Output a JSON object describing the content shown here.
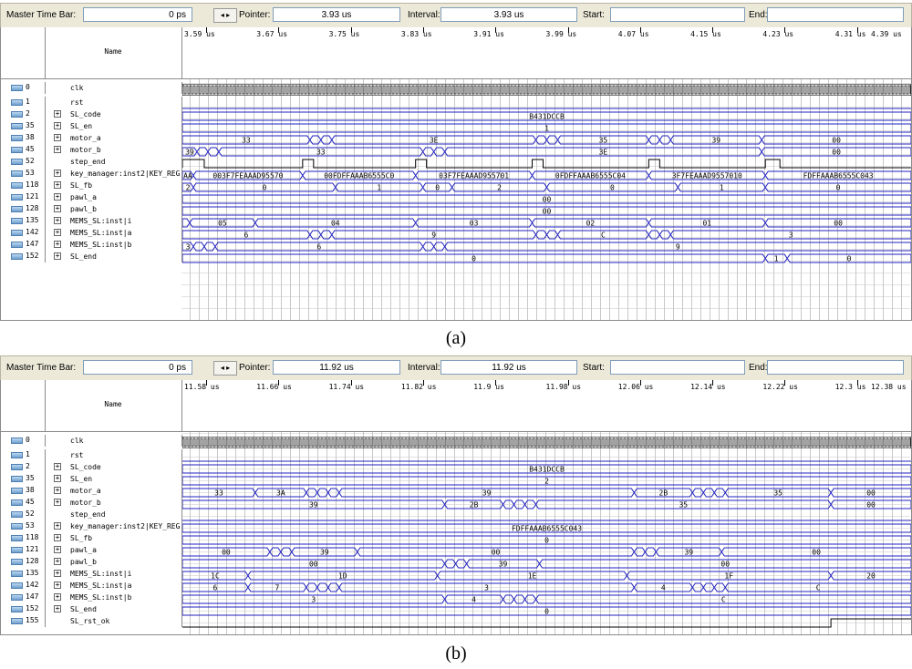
{
  "colors": {
    "wave": "#2020c0",
    "clk": "#1a1a1a",
    "grid": "#c8c8c8"
  },
  "toolbar_labels": {
    "master_time_bar": "Master Time Bar:",
    "pointer": "Pointer:",
    "interval": "Interval:",
    "start": "Start:",
    "end": "End:"
  },
  "panel_a": {
    "caption": "(a)",
    "master_time": "0 ps",
    "pointer": "3.93 us",
    "interval": "3.93 us",
    "start": "",
    "end": "",
    "name_header": "Name",
    "ticks": [
      "3.59 us",
      "3.67 us",
      "3.75 us",
      "3.83 us",
      "3.91 us",
      "3.99 us",
      "4.07 us",
      "4.15 us",
      "4.23 us",
      "4.31 us",
      "4.39 us"
    ],
    "signals": [
      {
        "id": "0",
        "name": "clk",
        "bus": false,
        "kind": "clk"
      },
      {
        "id": "1",
        "name": "rst",
        "bus": false,
        "kind": "low"
      },
      {
        "id": "2",
        "name": "SL_code",
        "bus": true,
        "kind": "bus",
        "segs": [
          {
            "v": "B431DCCB",
            "s": 0,
            "e": 1
          }
        ]
      },
      {
        "id": "35",
        "name": "SL_en",
        "bus": true,
        "kind": "bus",
        "segs": [
          {
            "v": "1",
            "s": 0,
            "e": 1
          }
        ]
      },
      {
        "id": "38",
        "name": "motor_a",
        "bus": true,
        "kind": "bus",
        "segs": [
          {
            "v": "33",
            "s": 0,
            "e": 0.175
          },
          {
            "v": "",
            "s": 0.175,
            "e": 0.19
          },
          {
            "v": "",
            "s": 0.19,
            "e": 0.205
          },
          {
            "v": "3E",
            "s": 0.205,
            "e": 0.485
          },
          {
            "v": "",
            "s": 0.485,
            "e": 0.5
          },
          {
            "v": "",
            "s": 0.5,
            "e": 0.515
          },
          {
            "v": "35",
            "s": 0.515,
            "e": 0.64
          },
          {
            "v": "",
            "s": 0.64,
            "e": 0.655
          },
          {
            "v": "",
            "s": 0.655,
            "e": 0.67
          },
          {
            "v": "39",
            "s": 0.67,
            "e": 0.795
          },
          {
            "v": "00",
            "s": 0.795,
            "e": 1
          }
        ]
      },
      {
        "id": "45",
        "name": "motor_b",
        "bus": true,
        "kind": "bus",
        "segs": [
          {
            "v": "39",
            "s": 0,
            "e": 0.02
          },
          {
            "v": "",
            "s": 0.02,
            "e": 0.035
          },
          {
            "v": "",
            "s": 0.035,
            "e": 0.05
          },
          {
            "v": "33",
            "s": 0.05,
            "e": 0.33
          },
          {
            "v": "",
            "s": 0.33,
            "e": 0.345
          },
          {
            "v": "",
            "s": 0.345,
            "e": 0.36
          },
          {
            "v": "3E",
            "s": 0.36,
            "e": 0.795
          },
          {
            "v": "00",
            "s": 0.795,
            "e": 1
          }
        ]
      },
      {
        "id": "52",
        "name": "step_end",
        "bus": false,
        "kind": "pulses",
        "pulses": [
          [
            0.0,
            0.03
          ],
          [
            0.165,
            0.18
          ],
          [
            0.32,
            0.335
          ],
          [
            0.48,
            0.495
          ],
          [
            0.64,
            0.655
          ],
          [
            0.8,
            0.82
          ]
        ]
      },
      {
        "id": "53",
        "name": "key_manager:inst2|KEY_REG",
        "bus": true,
        "kind": "bus",
        "segs": [
          {
            "v": "AA",
            "s": 0,
            "e": 0.015
          },
          {
            "v": "003F7FEAAAD95570",
            "s": 0.015,
            "e": 0.165
          },
          {
            "v": "00FDFFAAAB6555C0",
            "s": 0.165,
            "e": 0.32
          },
          {
            "v": "03F7FEAAAD955701",
            "s": 0.32,
            "e": 0.48
          },
          {
            "v": "0FDFFAAAB6555C04",
            "s": 0.48,
            "e": 0.64
          },
          {
            "v": "3F7FEAAAD9557010",
            "s": 0.64,
            "e": 0.8
          },
          {
            "v": "FDFFAAAB6555C043",
            "s": 0.8,
            "e": 1
          }
        ]
      },
      {
        "id": "118",
        "name": "SL_fb",
        "bus": true,
        "kind": "bus",
        "segs": [
          {
            "v": "2",
            "s": 0,
            "e": 0.015
          },
          {
            "v": "0",
            "s": 0.015,
            "e": 0.21
          },
          {
            "v": "1",
            "s": 0.21,
            "e": 0.33
          },
          {
            "v": "0",
            "s": 0.33,
            "e": 0.37
          },
          {
            "v": "2",
            "s": 0.37,
            "e": 0.5
          },
          {
            "v": "0",
            "s": 0.5,
            "e": 0.68
          },
          {
            "v": "1",
            "s": 0.68,
            "e": 0.8
          },
          {
            "v": "0",
            "s": 0.8,
            "e": 1
          }
        ]
      },
      {
        "id": "121",
        "name": "pawl_a",
        "bus": true,
        "kind": "bus",
        "segs": [
          {
            "v": "00",
            "s": 0,
            "e": 1
          }
        ]
      },
      {
        "id": "128",
        "name": "pawl_b",
        "bus": true,
        "kind": "bus",
        "segs": [
          {
            "v": "00",
            "s": 0,
            "e": 1
          }
        ]
      },
      {
        "id": "135",
        "name": "MEMS_SL:inst|i",
        "bus": true,
        "kind": "bus",
        "segs": [
          {
            "v": "",
            "s": 0,
            "e": 0.01
          },
          {
            "v": "05",
            "s": 0.01,
            "e": 0.1
          },
          {
            "v": "04",
            "s": 0.1,
            "e": 0.32
          },
          {
            "v": "03",
            "s": 0.32,
            "e": 0.48
          },
          {
            "v": "02",
            "s": 0.48,
            "e": 0.64
          },
          {
            "v": "01",
            "s": 0.64,
            "e": 0.8
          },
          {
            "v": "00",
            "s": 0.8,
            "e": 1
          }
        ]
      },
      {
        "id": "142",
        "name": "MEMS_SL:inst|a",
        "bus": true,
        "kind": "bus",
        "segs": [
          {
            "v": "6",
            "s": 0,
            "e": 0.175
          },
          {
            "v": "",
            "s": 0.175,
            "e": 0.19
          },
          {
            "v": "",
            "s": 0.19,
            "e": 0.205
          },
          {
            "v": "9",
            "s": 0.205,
            "e": 0.485
          },
          {
            "v": "",
            "s": 0.485,
            "e": 0.5
          },
          {
            "v": "",
            "s": 0.5,
            "e": 0.515
          },
          {
            "v": "C",
            "s": 0.515,
            "e": 0.64
          },
          {
            "v": "",
            "s": 0.64,
            "e": 0.655
          },
          {
            "v": "",
            "s": 0.655,
            "e": 0.67
          },
          {
            "v": "3",
            "s": 0.67,
            "e": 1
          }
        ]
      },
      {
        "id": "147",
        "name": "MEMS_SL:inst|b",
        "bus": true,
        "kind": "bus",
        "segs": [
          {
            "v": "3",
            "s": 0,
            "e": 0.015
          },
          {
            "v": "",
            "s": 0.015,
            "e": 0.03
          },
          {
            "v": "",
            "s": 0.03,
            "e": 0.045
          },
          {
            "v": "6",
            "s": 0.045,
            "e": 0.33
          },
          {
            "v": "",
            "s": 0.33,
            "e": 0.345
          },
          {
            "v": "",
            "s": 0.345,
            "e": 0.36
          },
          {
            "v": "9",
            "s": 0.36,
            "e": 1
          }
        ]
      },
      {
        "id": "152",
        "name": "SL_end",
        "bus": true,
        "kind": "bus",
        "segs": [
          {
            "v": "0",
            "s": 0,
            "e": 0.8
          },
          {
            "v": "1",
            "s": 0.8,
            "e": 0.83
          },
          {
            "v": "0",
            "s": 0.83,
            "e": 1
          }
        ]
      }
    ]
  },
  "panel_b": {
    "caption": "(b)",
    "master_time": "0 ps",
    "pointer": "11.92 us",
    "interval": "11.92 us",
    "start": "",
    "end": "",
    "name_header": "Name",
    "ticks": [
      "11.58 us",
      "11.66 us",
      "11.74 us",
      "11.82 us",
      "11.9 us",
      "11.98 us",
      "12.06 us",
      "12.14 us",
      "12.22 us",
      "12.3 us",
      "12.38 us"
    ],
    "signals": [
      {
        "id": "0",
        "name": "clk",
        "bus": false,
        "kind": "clk"
      },
      {
        "id": "1",
        "name": "rst",
        "bus": false,
        "kind": "low"
      },
      {
        "id": "2",
        "name": "SL_code",
        "bus": true,
        "kind": "bus",
        "segs": [
          {
            "v": "B431DCCB",
            "s": 0,
            "e": 1
          }
        ]
      },
      {
        "id": "35",
        "name": "SL_en",
        "bus": true,
        "kind": "bus",
        "segs": [
          {
            "v": "2",
            "s": 0,
            "e": 1
          }
        ]
      },
      {
        "id": "38",
        "name": "motor_a",
        "bus": true,
        "kind": "bus",
        "segs": [
          {
            "v": "33",
            "s": 0,
            "e": 0.1
          },
          {
            "v": "3A",
            "s": 0.1,
            "e": 0.17
          },
          {
            "v": "",
            "s": 0.17,
            "e": 0.185
          },
          {
            "v": "",
            "s": 0.185,
            "e": 0.2
          },
          {
            "v": "",
            "s": 0.2,
            "e": 0.215
          },
          {
            "v": "39",
            "s": 0.215,
            "e": 0.62
          },
          {
            "v": "2B",
            "s": 0.62,
            "e": 0.7
          },
          {
            "v": "",
            "s": 0.7,
            "e": 0.715
          },
          {
            "v": "",
            "s": 0.715,
            "e": 0.73
          },
          {
            "v": "",
            "s": 0.73,
            "e": 0.745
          },
          {
            "v": "35",
            "s": 0.745,
            "e": 0.89
          },
          {
            "v": "00",
            "s": 0.89,
            "e": 1
          }
        ]
      },
      {
        "id": "45",
        "name": "motor_b",
        "bus": true,
        "kind": "bus",
        "segs": [
          {
            "v": "39",
            "s": 0,
            "e": 0.36
          },
          {
            "v": "2B",
            "s": 0.36,
            "e": 0.44
          },
          {
            "v": "",
            "s": 0.44,
            "e": 0.455
          },
          {
            "v": "",
            "s": 0.455,
            "e": 0.47
          },
          {
            "v": "",
            "s": 0.47,
            "e": 0.485
          },
          {
            "v": "35",
            "s": 0.485,
            "e": 0.89
          },
          {
            "v": "00",
            "s": 0.89,
            "e": 1
          }
        ]
      },
      {
        "id": "52",
        "name": "step_end",
        "bus": false,
        "kind": "low"
      },
      {
        "id": "53",
        "name": "key_manager:inst2|KEY_REG",
        "bus": true,
        "kind": "bus",
        "segs": [
          {
            "v": "FDFFAAAB6555C043",
            "s": 0,
            "e": 1
          }
        ]
      },
      {
        "id": "118",
        "name": "SL_fb",
        "bus": true,
        "kind": "bus",
        "segs": [
          {
            "v": "0",
            "s": 0,
            "e": 1
          }
        ]
      },
      {
        "id": "121",
        "name": "pawl_a",
        "bus": true,
        "kind": "bus",
        "segs": [
          {
            "v": "00",
            "s": 0,
            "e": 0.12
          },
          {
            "v": "",
            "s": 0.12,
            "e": 0.135
          },
          {
            "v": "",
            "s": 0.135,
            "e": 0.15
          },
          {
            "v": "39",
            "s": 0.15,
            "e": 0.24
          },
          {
            "v": "00",
            "s": 0.24,
            "e": 0.62
          },
          {
            "v": "",
            "s": 0.62,
            "e": 0.635
          },
          {
            "v": "",
            "s": 0.635,
            "e": 0.65
          },
          {
            "v": "39",
            "s": 0.65,
            "e": 0.74
          },
          {
            "v": "00",
            "s": 0.74,
            "e": 1
          }
        ]
      },
      {
        "id": "128",
        "name": "pawl_b",
        "bus": true,
        "kind": "bus",
        "segs": [
          {
            "v": "00",
            "s": 0,
            "e": 0.36
          },
          {
            "v": "",
            "s": 0.36,
            "e": 0.375
          },
          {
            "v": "",
            "s": 0.375,
            "e": 0.39
          },
          {
            "v": "39",
            "s": 0.39,
            "e": 0.49
          },
          {
            "v": "00",
            "s": 0.49,
            "e": 1
          }
        ]
      },
      {
        "id": "135",
        "name": "MEMS_SL:inst|i",
        "bus": true,
        "kind": "bus",
        "segs": [
          {
            "v": "1C",
            "s": 0,
            "e": 0.09
          },
          {
            "v": "1D",
            "s": 0.09,
            "e": 0.35
          },
          {
            "v": "1E",
            "s": 0.35,
            "e": 0.61
          },
          {
            "v": "1F",
            "s": 0.61,
            "e": 0.89
          },
          {
            "v": "20",
            "s": 0.89,
            "e": 1
          }
        ]
      },
      {
        "id": "142",
        "name": "MEMS_SL:inst|a",
        "bus": true,
        "kind": "bus",
        "segs": [
          {
            "v": "6",
            "s": 0,
            "e": 0.09
          },
          {
            "v": "7",
            "s": 0.09,
            "e": 0.17
          },
          {
            "v": "",
            "s": 0.17,
            "e": 0.185
          },
          {
            "v": "",
            "s": 0.185,
            "e": 0.2
          },
          {
            "v": "",
            "s": 0.2,
            "e": 0.215
          },
          {
            "v": "3",
            "s": 0.215,
            "e": 0.62
          },
          {
            "v": "4",
            "s": 0.62,
            "e": 0.7
          },
          {
            "v": "",
            "s": 0.7,
            "e": 0.715
          },
          {
            "v": "",
            "s": 0.715,
            "e": 0.73
          },
          {
            "v": "",
            "s": 0.73,
            "e": 0.745
          },
          {
            "v": "C",
            "s": 0.745,
            "e": 1
          }
        ]
      },
      {
        "id": "147",
        "name": "MEMS_SL:inst|b",
        "bus": true,
        "kind": "bus",
        "segs": [
          {
            "v": "3",
            "s": 0,
            "e": 0.36
          },
          {
            "v": "4",
            "s": 0.36,
            "e": 0.44
          },
          {
            "v": "",
            "s": 0.44,
            "e": 0.455
          },
          {
            "v": "",
            "s": 0.455,
            "e": 0.47
          },
          {
            "v": "",
            "s": 0.47,
            "e": 0.485
          },
          {
            "v": "C",
            "s": 0.485,
            "e": 1
          }
        ]
      },
      {
        "id": "152",
        "name": "SL_end",
        "bus": true,
        "kind": "bus",
        "segs": [
          {
            "v": "0",
            "s": 0,
            "e": 1
          }
        ]
      },
      {
        "id": "155",
        "name": "SL_rst_ok",
        "bus": false,
        "kind": "step",
        "rise": 0.89
      }
    ]
  }
}
